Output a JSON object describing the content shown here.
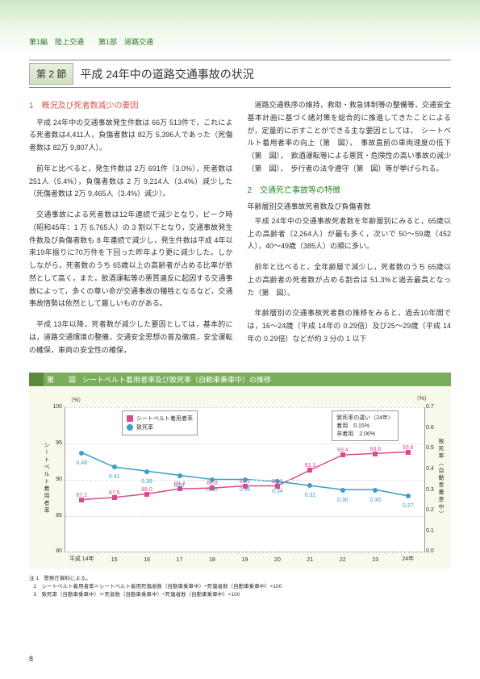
{
  "header": {
    "breadcrumb": "第1編　陸上交通　　第1部　道路交通"
  },
  "section": {
    "badge": "第 2 節",
    "title": "平成 24年中の道路交通事故の状況"
  },
  "left": {
    "sub1": "1　概況及び死者数減少の要因",
    "p1": "平成 24年中の交通事故発生件数は 66万 513件で，これによる死者数は4,411人，負傷者数は 82万 5,396人であった（死傷者数は 82万 9,807人）。",
    "p2": "前年と比べると，発生件数は 2万 691件（3.0%），死者数は 251人（5.4%），負傷者数は 2 万 9,214人（3.4%）減少した（死傷者数は 2万 9,465人（3.4%）減少）。",
    "p3": "交通事故による死者数は12年連続で減少となり，ピーク時（昭和45年：1 万 6,765人）の 3 割以下となり，交通事故発生件数及び負傷者数も 8 年連続で減少し，発生件数は平成 4年以来19年振りに70万件を下回った昨年より更に減少した。しかしながら，死者数のうち 65歳以上の高齢者が占める比率が依然として高く，また，飲酒運転等の悪質違反に起因する交通事故によって，多くの尊い命が交通事故の犠牲となるなど，交通事故情勢は依然として厳しいものがある。",
    "p4": "平成 13年以降，死者数が減少した要因としては，基本的には，道路交通環境の整備，交通安全思想の普及徹底，安全運転の確保，車両の安全性の確保，"
  },
  "right": {
    "p1": "道路交通秩序の維持，救助・救急体制等の整備等，交通安全基本計画に基づく諸対策を総合的に推進してきたことによるが，定量的に示すことができる主な要因としては，　シートベルト着用者率の向上（第　図），　事故直前の車両速度の低下（第　図），　飲酒運転等による悪質・危険性の高い事故の減少（第　図），　歩行者の法令遵守（第　図）等が挙げられる。",
    "sub2": "2　交通死亡事故等の特徴",
    "h": "年齢層別交通事故死者数及び負傷者数",
    "p2": "平成 24年中の交通事故死者数を年齢層別にみると，65歳以上の高齢者（2,264人）が最も多く，次いで 50～59歳（452人），40～49歳（385人）の順に多い。",
    "p3": "前年と比べると，全年齢層で減少し，死者数のうち 65歳以上の高齢者の死者数が占める割合は 51.3%と過去最高となった（第　図）。",
    "p4": "年齢層別の交通事故死者数の推移をみると，過去10年間では，16～24歳（平成 14年の 0.29倍）及び25～29歳（平成 14年の 0.29倍）などが約 3 分の 1 以下"
  },
  "figure": {
    "label": "第　　図",
    "title": "シートベルト着用者率及び致死率（自動車乗車中）の推移",
    "y_left_unit": "（%）",
    "y_right_unit": "（%）",
    "legend": {
      "series1": "シートベルト着用者率",
      "series2": "致死率"
    },
    "info_box": {
      "title": "致死率の違い（24年）",
      "row1": "着用　0.15%",
      "row2": "非着用　2.06%"
    },
    "axis_left_title": "シートベルト着用者率",
    "axis_right_title": "致死率（自動車乗車中）",
    "y_left": {
      "min": 80,
      "max": 100,
      "ticks": [
        80,
        85,
        90,
        95,
        100
      ]
    },
    "y_right": {
      "min": 0,
      "max": 0.7,
      "ticks": [
        0,
        0.1,
        0.2,
        0.3,
        0.4,
        0.5,
        0.6,
        0.7
      ]
    },
    "x": [
      "平成 14年",
      "15",
      "16",
      "17",
      "18",
      "19",
      "20",
      "21",
      "22",
      "23",
      "24年"
    ],
    "series_belt": [
      87.2,
      87.5,
      88.0,
      88.7,
      88.8,
      89.1,
      89.1,
      91.3,
      93.4,
      93.6,
      93.8
    ],
    "labels_belt": [
      "87.2",
      "87.5",
      "88.0",
      "88.7",
      "88.8",
      "89.1",
      "89.1",
      "91.3",
      "93.4",
      "93.6",
      "93.8"
    ],
    "series_death": [
      0.48,
      0.41,
      0.39,
      0.37,
      0.35,
      0.35,
      0.34,
      0.32,
      0.3,
      0.3,
      0.27
    ],
    "labels_death": [
      "0.48",
      "0.41",
      "0.39",
      "0.37",
      "0.35",
      "0.35",
      "0.34",
      "0.32",
      "0.30",
      "0.30",
      "0.27"
    ],
    "colors": {
      "belt": "#d94b8c",
      "death": "#3a9fc9",
      "bg": "#f6f9eb"
    }
  },
  "footnotes": {
    "head": "注",
    "n1": "1　警察庁資料による。",
    "n2": "2　シートベルト着用者率＝シートベルト着用死傷者数（自動車乗車中）÷死傷者数（自動車乗車中）×100",
    "n3": "3　致死率（自動車乗車中）＝死者数（自動車乗車中）÷死傷者数（自動車乗車中）×100"
  },
  "page": "8"
}
